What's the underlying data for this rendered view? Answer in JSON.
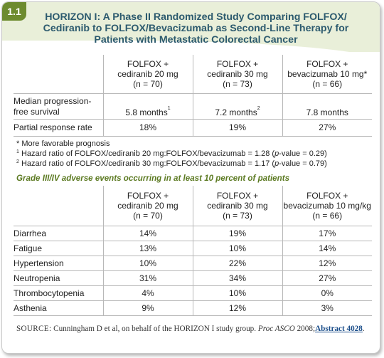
{
  "figure": {
    "number": "1.1",
    "title": "HORIZON I: A Phase II Randomized Study Comparing FOLFOX/ Cediranib to FOLFOX/Bevacizumab as Second-Line Therapy for Patients with Metastatic Colorectal Cancer"
  },
  "colors": {
    "header_band": "#e9efd9",
    "tag_bg": "#6d8b2f",
    "title_text": "#2c5a6e",
    "subheading_text": "#5c7a22",
    "link_text": "#1b4e8a"
  },
  "efficacy_table": {
    "headers": [
      {
        "drug": "FOLFOX +",
        "dose": "cediranib 20 mg",
        "n": "(n = 70)"
      },
      {
        "drug": "FOLFOX +",
        "dose": "cediranib 30 mg",
        "n": "(n = 73)"
      },
      {
        "drug": "FOLFOX +",
        "dose": "bevacizumab 10 mg*",
        "n": "(n = 66)"
      }
    ],
    "rows": [
      {
        "label": "Median progression-free survival",
        "values": [
          "5.8 months",
          "7.2 months",
          "7.8 months"
        ],
        "sup": [
          "1",
          "2",
          ""
        ]
      },
      {
        "label": "Partial response rate",
        "values": [
          "18%",
          "19%",
          "27%"
        ]
      }
    ]
  },
  "footnotes": {
    "star": "* More favorable prognosis",
    "fn1_mark": "1",
    "fn1_pre": " Hazard ratio of FOLFOX/cediranib 20 mg:FOLFOX/bevacizumab = 1.28 (",
    "fn1_italic": "p",
    "fn1_post": "-value = 0.29)",
    "fn2_mark": "2",
    "fn2_pre": " Hazard ratio of FOLFOX/cediranib 30 mg:FOLFOX/bevacizumab = 1.17 (",
    "fn2_italic": "p",
    "fn2_post": "-value = 0.79)"
  },
  "adverse_events": {
    "heading": "Grade III/IV adverse events occurring in at least 10 percent of patients",
    "headers": [
      {
        "drug": "FOLFOX +",
        "dose": "cediranib 20 mg",
        "n": "(n = 70)"
      },
      {
        "drug": "FOLFOX +",
        "dose": "cediranib 30 mg",
        "n": "(n = 73)"
      },
      {
        "drug": "FOLFOX +",
        "dose": "bevacizumab 10 mg/kg",
        "n": "(n = 66)"
      }
    ],
    "rows": [
      {
        "label": "Diarrhea",
        "values": [
          "14%",
          "19%",
          "17%"
        ]
      },
      {
        "label": "Fatigue",
        "values": [
          "13%",
          "10%",
          "14%"
        ]
      },
      {
        "label": "Hypertension",
        "values": [
          "10%",
          "22%",
          "12%"
        ]
      },
      {
        "label": "Neutropenia",
        "values": [
          "31%",
          "34%",
          "27%"
        ]
      },
      {
        "label": "Thrombocytopenia",
        "values": [
          "4%",
          "10%",
          "0%"
        ]
      },
      {
        "label": "Asthenia",
        "values": [
          "9%",
          "12%",
          "3%"
        ]
      }
    ]
  },
  "source": {
    "label": "SOURCE:",
    "text_pre": " Cunningham D et al, on behalf of the HORIZON I study group. ",
    "journal": "Proc ASCO",
    "year": " 2008;",
    "link": "Abstract 4028",
    "end": "."
  }
}
